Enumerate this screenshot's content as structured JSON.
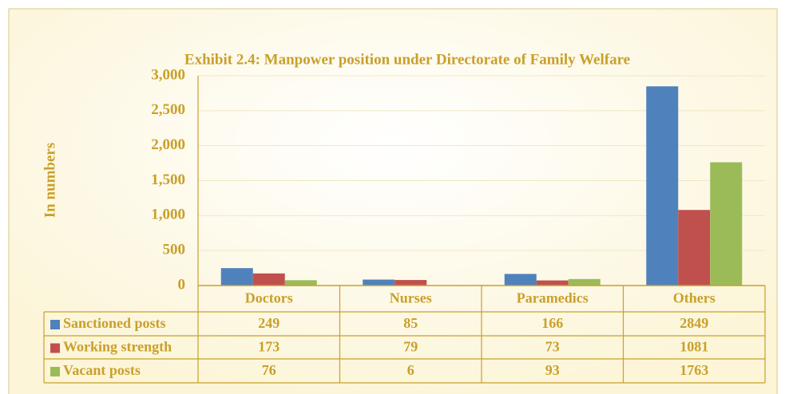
{
  "chart_data": {
    "type": "bar",
    "title": "Exhibit 2.4: Manpower position under Directorate of Family Welfare",
    "y_label": "In numbers",
    "categories": [
      "Doctors",
      "Nurses",
      "Paramedics",
      "Others"
    ],
    "series": [
      {
        "name": "Sanctioned posts",
        "color": "#4f81bd",
        "values": [
          249,
          85,
          166,
          2849
        ]
      },
      {
        "name": "Working strength",
        "color": "#c0504d",
        "values": [
          173,
          79,
          73,
          1081
        ]
      },
      {
        "name": "Vacant posts",
        "color": "#9bbb59",
        "values": [
          76,
          6,
          93,
          1763
        ]
      }
    ],
    "ylim": [
      0,
      3000
    ],
    "yticks": [
      0,
      500,
      {
        "value": 1000,
        "label": "1,000"
      },
      {
        "value": 1500,
        "label": "1,500"
      },
      {
        "value": 2000,
        "label": "2,000"
      },
      {
        "value": 2500,
        "label": "2,500"
      },
      {
        "value": 3000,
        "label": "3,000"
      }
    ],
    "grid": true,
    "data_table": true
  }
}
